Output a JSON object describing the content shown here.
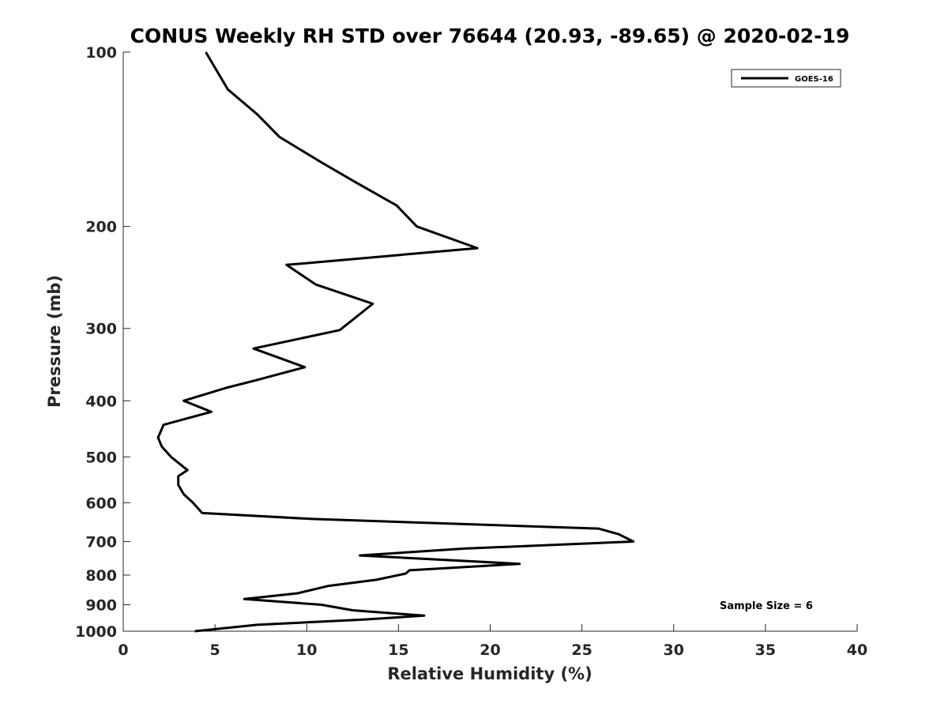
{
  "chart_data": {
    "type": "line",
    "title": "CONUS Weekly RH STD over 76644 (20.93, -89.65) @ 2020-02-19",
    "xlabel": "Relative Humidity (%)",
    "ylabel": "Pressure (mb)",
    "xlim": [
      0,
      40
    ],
    "ylim": [
      100,
      1000
    ],
    "yscale": "log",
    "y_reversed": true,
    "xticks": [
      0,
      5,
      10,
      15,
      20,
      25,
      30,
      35,
      40
    ],
    "yticks": [
      100,
      200,
      300,
      400,
      500,
      600,
      700,
      800,
      900,
      1000
    ],
    "legend": {
      "location": "top-right",
      "entries": [
        "GOES-16"
      ]
    },
    "annotation": "Sample Size = 6",
    "series": [
      {
        "name": "GOES-16",
        "x": [
          4.5,
          5.7,
          7.3,
          8.5,
          10.8,
          12.7,
          14.9,
          16.0,
          19.3,
          8.9,
          10.5,
          13.6,
          11.8,
          7.1,
          9.9,
          7.2,
          5.6,
          3.3,
          4.8,
          2.2,
          1.9,
          2.1,
          2.6,
          3.5,
          3.0,
          3.0,
          3.3,
          3.8,
          4.3,
          10.3,
          25.9,
          27.0,
          27.8,
          18.6,
          12.9,
          21.6,
          15.6,
          15.4,
          13.8,
          11.2,
          9.5,
          6.6,
          10.8,
          12.5,
          16.4,
          13.1,
          7.3,
          3.9
        ],
        "y": [
          100,
          116,
          128,
          140,
          155,
          168,
          184,
          200,
          218,
          233,
          252,
          272,
          302,
          325,
          350,
          369,
          380,
          400,
          418,
          440,
          463,
          480,
          500,
          527,
          540,
          559,
          580,
          600,
          625,
          640,
          665,
          680,
          700,
          720,
          740,
          765,
          785,
          795,
          815,
          835,
          860,
          880,
          900,
          920,
          940,
          955,
          975,
          1000
        ]
      }
    ]
  }
}
